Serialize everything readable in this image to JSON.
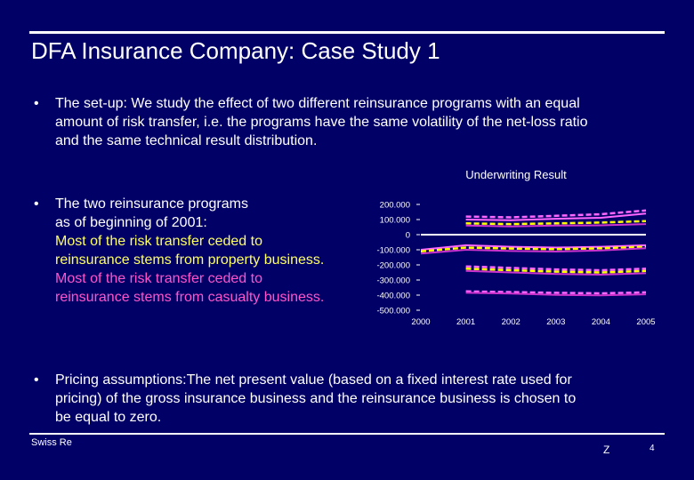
{
  "slide": {
    "title": "DFA Insurance Company: Case Study 1",
    "bullet_symbol": "•",
    "bullet1": {
      "lines": [
        "The set-up: We study the effect of two different reinsurance programs with an equal",
        "amount of risk transfer, i.e. the programs have the same volatility of the net-loss ratio",
        "and the same technical result distribution."
      ]
    },
    "bullet2": {
      "lines": [
        "The two reinsurance programs",
        "as of beginning of 2001:"
      ],
      "program_a_lines": [
        "Most of the risk transfer ceded to",
        "reinsurance stems from property business."
      ],
      "program_b_lines": [
        "Most of the risk transfer ceded to",
        "reinsurance stems from casualty business."
      ]
    },
    "bullet3": {
      "lines": [
        "Pricing assumptions:The net present value (based on a fixed interest rate used for",
        "pricing) of the gross insurance business and the reinsurance business is chosen to",
        "be equal to zero."
      ]
    },
    "footer": {
      "brand": "Swiss Re",
      "mark": "Z",
      "page": "4"
    }
  },
  "colors": {
    "background": "#000066",
    "text": "#ffffff",
    "property_text": "#ffff66",
    "casualty_text": "#ff55cc"
  },
  "chart_data": {
    "type": "line",
    "title": "Underwriting Result",
    "x": [
      2000,
      2001,
      2002,
      2003,
      2004,
      2005
    ],
    "x_tick_labels": [
      "2000",
      "2001",
      "2002",
      "2003",
      "2004",
      "2005"
    ],
    "y_tick_values": [
      200000,
      100000,
      0,
      -100000,
      -200000,
      -300000,
      -400000,
      -500000
    ],
    "y_tick_labels": [
      "200.000",
      "100.000",
      "0",
      "-100.000",
      "-200.000",
      "-300.000",
      "-400.000",
      "-500.000"
    ],
    "ylim": [
      -500000,
      200000
    ],
    "grid": false,
    "series": [
      {
        "color": "#ff66ff",
        "dashed": true,
        "values": [
          null,
          120000,
          115000,
          125000,
          135000,
          160000
        ]
      },
      {
        "color": "#ff66ff",
        "dashed": false,
        "values": [
          null,
          100000,
          95000,
          105000,
          112000,
          140000
        ]
      },
      {
        "color": "#ffff00",
        "dashed": true,
        "values": [
          null,
          75000,
          70000,
          75000,
          80000,
          90000
        ]
      },
      {
        "color": "#cc33cc",
        "dashed": false,
        "values": [
          null,
          60000,
          55000,
          60000,
          62000,
          70000
        ]
      },
      {
        "color": "#ffffff",
        "dashed": false,
        "values": [
          0,
          0,
          0,
          0,
          0,
          0
        ]
      },
      {
        "color": "#ff66ff",
        "dashed": false,
        "values": [
          -100000,
          -70000,
          -80000,
          -85000,
          -80000,
          -70000
        ]
      },
      {
        "color": "#ffff00",
        "dashed": true,
        "values": [
          -110000,
          -85000,
          -92000,
          -96000,
          -90000,
          -80000
        ]
      },
      {
        "color": "#cc33cc",
        "dashed": false,
        "values": [
          -125000,
          -100000,
          -108000,
          -112000,
          -104000,
          -90000
        ]
      },
      {
        "color": "#ff66ff",
        "dashed": true,
        "values": [
          null,
          -210000,
          -220000,
          -230000,
          -235000,
          -225000
        ]
      },
      {
        "color": "#ffff00",
        "dashed": true,
        "values": [
          null,
          -225000,
          -235000,
          -245000,
          -250000,
          -240000
        ]
      },
      {
        "color": "#cc33cc",
        "dashed": false,
        "values": [
          null,
          -240000,
          -250000,
          -260000,
          -265000,
          -255000
        ]
      },
      {
        "color": "#ff66ff",
        "dashed": true,
        "values": [
          null,
          -375000,
          -380000,
          -385000,
          -388000,
          -382000
        ]
      },
      {
        "color": "#cc33cc",
        "dashed": false,
        "values": [
          null,
          -385000,
          -390000,
          -398000,
          -402000,
          -395000
        ]
      }
    ]
  }
}
